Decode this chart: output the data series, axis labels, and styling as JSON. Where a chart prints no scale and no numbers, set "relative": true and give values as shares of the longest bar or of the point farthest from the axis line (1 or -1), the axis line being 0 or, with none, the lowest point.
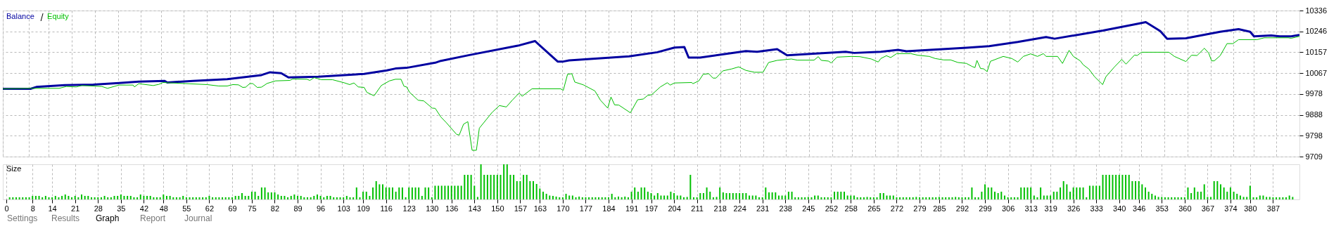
{
  "chart_data": [
    {
      "type": "line",
      "legend": "top left",
      "grid": true,
      "tick_labels": "y",
      "line_style": "solid",
      "xlim": [
        0,
        394
      ],
      "xticks": [
        0,
        8,
        14,
        21,
        28,
        35,
        42,
        48,
        55,
        62,
        69,
        75,
        82,
        89,
        96,
        103,
        109,
        116,
        123,
        130,
        136,
        143,
        150,
        157,
        163,
        170,
        177,
        184,
        191,
        197,
        204,
        211,
        218,
        224,
        231,
        238,
        245,
        252,
        258,
        265,
        272,
        279,
        285,
        292,
        299,
        306,
        313,
        319,
        326,
        333,
        340,
        346,
        353,
        360,
        367,
        374,
        380,
        387
      ],
      "ylim": [
        9709,
        10336
      ],
      "yticks": [
        9709,
        9798,
        9888,
        9978,
        10067,
        10157,
        10246,
        10336
      ],
      "series": [
        {
          "name": "Balance",
          "color": "#0000a0",
          "x": [
            0,
            8.4,
            10.2,
            18.8,
            27.5,
            35.3,
            41.3,
            49.1,
            50,
            57.8,
            68.2,
            78.6,
            81.2,
            84.6,
            86.8,
            95.9,
            109.8,
            116.7,
            119.3,
            122.7,
            131.4,
            133.1,
            141.8,
            156.5,
            161.7,
            168.6,
            170.3,
            172.1,
            190.3,
            198.9,
            204.1,
            207.1,
            208.4,
            211.9,
            225.8,
            229.2,
            235.3,
            238.3,
            256.1,
            258.7,
            266.8,
            272,
            274.6,
            292.8,
            299.7,
            308.4,
            317,
            319.6,
            334.3,
            344.7,
            347.3,
            351.7,
            353.8,
            359.5,
            369.9,
            375.5,
            379,
            380.2,
            385.4,
            388,
            391.5,
            394
          ],
          "values": [
            10000,
            10000,
            10008,
            10016,
            10018,
            10025,
            10031,
            10034,
            10027,
            10034,
            10041,
            10059,
            10071,
            10067,
            10049,
            10052,
            10064,
            10079,
            10087,
            10090,
            10112,
            10120,
            10145,
            10185,
            10205,
            10117,
            10117,
            10122,
            10139,
            10157,
            10177,
            10179,
            10134,
            10134,
            10162,
            10159,
            10170,
            10144,
            10159,
            10154,
            10159,
            10167,
            10161,
            10176,
            10183,
            10201,
            10222,
            10215,
            10250,
            10279,
            10286,
            10248,
            10215,
            10217,
            10245,
            10256,
            10245,
            10225,
            10229,
            10225,
            10225,
            10231
          ]
        },
        {
          "name": "Equity",
          "color": "#00c000",
          "x": [
            0,
            8.4,
            17.1,
            19.3,
            22.3,
            24,
            30.1,
            31.8,
            35.3,
            39.6,
            40,
            41.3,
            45.7,
            47.4,
            48.7,
            62.1,
            65.6,
            68.2,
            69.9,
            71.6,
            72.9,
            73.8,
            75.1,
            76,
            77.3,
            78.6,
            80.3,
            82.9,
            87.2,
            88.1,
            92.4,
            93.3,
            94.6,
            96.8,
            100.2,
            103.7,
            105.4,
            106.7,
            108,
            109.8,
            110.6,
            112.8,
            115,
            117.5,
            119.3,
            121,
            121.9,
            122.7,
            123.6,
            126.2,
            127.9,
            130.5,
            131.4,
            133.1,
            134.8,
            137.9,
            138.7,
            140,
            141.3,
            142.6,
            143.9,
            144.8,
            148.7,
            150.9,
            153,
            154.8,
            156.9,
            157.8,
            160.8,
            169.5,
            170.3,
            171.6,
            172.9,
            173.8,
            176.4,
            179.9,
            181.6,
            183.8,
            184.8,
            185.9,
            187.2,
            190.7,
            192.9,
            194.6,
            195.9,
            197.2,
            199.8,
            201.9,
            202.8,
            204.1,
            209.3,
            209.7,
            211.5,
            212.8,
            214.5,
            215.8,
            216.7,
            218.8,
            221.4,
            223.6,
            225.8,
            228.4,
            231,
            232.7,
            235.3,
            239.6,
            241.4,
            246.5,
            247.8,
            248.7,
            250.9,
            251.7,
            253.5,
            257.8,
            260.4,
            263.9,
            266,
            266.8,
            268.5,
            269.8,
            271.6,
            275.9,
            278.1,
            281.5,
            283.3,
            285.9,
            288,
            290.2,
            292.8,
            294.5,
            295.4,
            296,
            297.1,
            298,
            299.1,
            300.1,
            304,
            306.6,
            308.4,
            310.1,
            312.3,
            314.4,
            316.2,
            317,
            320.5,
            322,
            324,
            325.3,
            327.4,
            328.3,
            330,
            331.8,
            334.2,
            335.2,
            337.8,
            340,
            341.3,
            343.9,
            344.7,
            346,
            354.3,
            356,
            359.5,
            361.2,
            362.9,
            365.1,
            366.4,
            367.3,
            368.1,
            369.9,
            372,
            373.8,
            375.5,
            381.1,
            383.3,
            390.6,
            391.5,
            394
          ],
          "values": [
            10000,
            10002,
            10002,
            10010,
            10008,
            10014,
            10010,
            10002,
            10016,
            10016,
            10008,
            10022,
            10014,
            10019,
            10027,
            10018,
            10012,
            10012,
            10018,
            10017,
            10006,
            10007,
            10023,
            10022,
            10006,
            10007,
            10023,
            10034,
            10036,
            10042,
            10041,
            10036,
            10048,
            10039,
            10039,
            10026,
            10018,
            10025,
            10008,
            10006,
            9985,
            9970,
            10014,
            10034,
            10041,
            10041,
            10011,
            10008,
            9985,
            9951,
            9948,
            9917,
            9916,
            9879,
            9854,
            9804,
            9802,
            9848,
            9859,
            9736,
            9736,
            9831,
            9899,
            9928,
            9922,
            9951,
            9982,
            9968,
            10000,
            10000,
            9993,
            10062,
            10065,
            10029,
            10017,
            9991,
            9951,
            9917,
            9965,
            9931,
            9930,
            9897,
            9953,
            9956,
            9971,
            9975,
            10008,
            10026,
            10016,
            10025,
            10027,
            10022,
            10034,
            10062,
            10065,
            10046,
            10046,
            10077,
            10085,
            10094,
            10079,
            10071,
            10071,
            10113,
            10122,
            10128,
            10123,
            10123,
            10138,
            10122,
            10119,
            10111,
            10136,
            10139,
            10138,
            10128,
            10115,
            10130,
            10142,
            10134,
            10151,
            10151,
            10144,
            10139,
            10130,
            10124,
            10124,
            10113,
            10109,
            10096,
            10091,
            10122,
            10087,
            10086,
            10074,
            10118,
            10139,
            10130,
            10115,
            10139,
            10150,
            10139,
            10151,
            10139,
            10139,
            10109,
            10165,
            10139,
            10120,
            10103,
            10085,
            10051,
            10018,
            10052,
            10094,
            10126,
            10106,
            10145,
            10143,
            10157,
            10157,
            10139,
            10117,
            10144,
            10143,
            10174,
            10154,
            10120,
            10120,
            10142,
            10194,
            10194,
            10211,
            10211,
            10219,
            10219,
            10217,
            10225
          ]
        }
      ]
    },
    {
      "type": "bar",
      "relative": true,
      "title": "Size",
      "grid": "x",
      "tick_labels": "x",
      "xlim": [
        0,
        394
      ],
      "xticks": [
        0,
        8,
        14,
        21,
        28,
        35,
        42,
        48,
        55,
        62,
        69,
        75,
        82,
        89,
        96,
        103,
        109,
        116,
        123,
        130,
        136,
        143,
        150,
        157,
        163,
        170,
        177,
        184,
        191,
        197,
        204,
        211,
        218,
        224,
        231,
        238,
        245,
        252,
        258,
        265,
        272,
        279,
        285,
        292,
        299,
        306,
        313,
        319,
        326,
        333,
        340,
        346,
        353,
        360,
        367,
        374,
        380,
        387
      ],
      "annotations": [
        "Settings",
        "Results",
        "Graph",
        "Report",
        "Journal"
      ],
      "series": [
        {
          "color": "#00c000",
          "x": [
            1,
            2,
            3,
            4,
            5,
            6,
            7,
            8,
            9,
            10,
            11,
            12,
            13,
            14,
            15,
            16,
            17,
            18,
            19,
            20,
            21,
            22,
            23,
            24,
            25,
            26,
            27,
            28,
            29,
            30,
            31,
            32,
            33,
            34,
            35,
            36,
            37,
            38,
            39,
            40,
            41,
            42,
            43,
            44,
            45,
            46,
            47,
            48,
            49,
            50,
            51,
            52,
            53,
            54,
            55,
            56,
            57,
            58,
            59,
            60,
            61,
            62,
            63,
            64,
            65,
            66,
            67,
            68,
            69,
            70,
            71,
            72,
            73,
            74,
            75,
            76,
            77,
            78,
            79,
            80,
            81,
            82,
            83,
            84,
            85,
            86,
            87,
            88,
            89,
            90,
            91,
            92,
            93,
            94,
            95,
            96,
            97,
            98,
            99,
            100,
            101,
            102,
            103,
            104,
            105,
            106,
            107,
            108,
            109,
            110,
            111,
            112,
            113,
            114,
            115,
            116,
            117,
            118,
            119,
            120,
            121,
            122,
            123,
            124,
            125,
            126,
            127,
            128,
            129,
            130,
            131,
            132,
            133,
            134,
            135,
            136,
            137,
            138,
            139,
            140,
            141,
            142,
            143,
            144,
            145,
            146,
            147,
            148,
            149,
            150,
            151,
            152,
            153,
            154,
            155,
            156,
            157,
            158,
            159,
            160,
            161,
            162,
            163,
            164,
            165,
            166,
            167,
            168,
            169,
            170,
            171,
            172,
            173,
            174,
            175,
            176,
            177,
            178,
            179,
            180,
            181,
            182,
            183,
            184,
            185,
            186,
            187,
            188,
            189,
            190,
            191,
            192,
            193,
            194,
            195,
            196,
            197,
            198,
            199,
            200,
            201,
            202,
            203,
            204,
            205,
            206,
            207,
            208,
            209,
            210,
            211,
            212,
            213,
            214,
            215,
            216,
            217,
            218,
            219,
            220,
            221,
            222,
            223,
            224,
            225,
            226,
            227,
            228,
            229,
            230,
            231,
            232,
            233,
            234,
            235,
            236,
            237,
            238,
            239,
            240,
            241,
            242,
            243,
            244,
            245,
            246,
            247,
            248,
            249,
            250,
            251,
            252,
            253,
            254,
            255,
            256,
            257,
            258,
            259,
            260,
            261,
            262,
            263,
            264,
            265,
            266,
            267,
            268,
            269,
            270,
            271,
            272,
            273,
            274,
            275,
            276,
            277,
            278,
            279,
            280,
            281,
            282,
            283,
            284,
            285,
            286,
            287,
            288,
            289,
            290,
            291,
            292,
            293,
            294,
            295,
            296,
            297,
            298,
            299,
            300,
            301,
            302,
            303,
            304,
            305,
            306,
            307,
            308,
            309,
            310,
            311,
            312,
            313,
            314,
            315,
            316,
            317,
            318,
            319,
            320,
            321,
            322,
            323,
            324,
            325,
            326,
            327,
            328,
            329,
            330,
            331,
            332,
            333,
            334,
            335,
            336,
            337,
            338,
            339,
            340,
            341,
            342,
            343,
            344,
            345,
            346,
            347,
            348,
            349,
            350,
            351,
            352,
            353,
            354,
            355,
            356,
            357,
            358,
            359,
            360,
            361,
            362,
            363,
            364,
            365,
            366,
            367,
            368,
            369,
            370,
            371,
            372,
            373,
            374,
            375,
            376,
            377,
            378,
            379,
            380,
            381,
            382,
            383,
            384,
            385,
            386,
            387,
            388,
            389,
            390,
            391,
            392,
            393
          ],
          "values": [
            0.06,
            0.06,
            0.06,
            0.06,
            0.06,
            0.06,
            0.06,
            0.1,
            0.1,
            0.1,
            0.06,
            0.1,
            0.06,
            0.06,
            0.1,
            0.06,
            0.1,
            0.14,
            0.1,
            0.06,
            0.1,
            0.06,
            0.14,
            0.1,
            0.1,
            0.06,
            0.06,
            0.06,
            0.06,
            0.1,
            0.06,
            0.06,
            0.1,
            0.1,
            0.14,
            0.1,
            0.1,
            0.1,
            0.06,
            0.06,
            0.14,
            0.1,
            0.1,
            0.1,
            0.06,
            0.06,
            0.06,
            0.14,
            0.1,
            0.1,
            0.06,
            0.06,
            0.06,
            0.1,
            0.06,
            0.06,
            0.06,
            0.06,
            0.06,
            0.06,
            0.06,
            0.1,
            0.06,
            0.06,
            0.06,
            0.06,
            0.06,
            0.06,
            0.06,
            0.1,
            0.1,
            0.18,
            0.1,
            0.1,
            0.22,
            0.22,
            0.1,
            0.34,
            0.34,
            0.2,
            0.2,
            0.2,
            0.14,
            0.1,
            0.1,
            0.06,
            0.1,
            0.14,
            0.1,
            0.1,
            0.06,
            0.06,
            0.06,
            0.1,
            0.14,
            0.1,
            0.06,
            0.1,
            0.1,
            0.06,
            0.06,
            0.06,
            0.06,
            0.1,
            0.06,
            0.06,
            0.34,
            0.06,
            0.22,
            0.22,
            0.1,
            0.34,
            0.52,
            0.43,
            0.43,
            0.34,
            0.34,
            0.34,
            0.22,
            0.34,
            0.34,
            0.06,
            0.34,
            0.34,
            0.34,
            0.34,
            0.1,
            0.34,
            0.34,
            0.06,
            0.39,
            0.39,
            0.39,
            0.39,
            0.39,
            0.39,
            0.39,
            0.39,
            0.39,
            0.7,
            0.7,
            0.7,
            0.39,
            0.07,
            1,
            0.7,
            0.7,
            0.7,
            0.7,
            0.7,
            0.7,
            1,
            1,
            0.7,
            0.7,
            0.52,
            0.52,
            0.7,
            0.7,
            0.52,
            0.52,
            0.44,
            0.31,
            0.22,
            0.16,
            0.11,
            0.1,
            0.08,
            0.06,
            0.06,
            0.16,
            0.11,
            0.11,
            0.06,
            0.08,
            0.06,
            0.06,
            0.06,
            0.06,
            0.06,
            0.06,
            0.06,
            0.06,
            0.06,
            0.16,
            0.06,
            0.08,
            0.06,
            0.08,
            0.06,
            0.22,
            0.34,
            0.22,
            0.34,
            0.34,
            0.22,
            0.18,
            0.11,
            0.18,
            0.11,
            0.11,
            0.11,
            0.22,
            0.18,
            0.11,
            0.11,
            0.06,
            0.07,
            0.7,
            0.06,
            0.06,
            0.18,
            0.18,
            0.34,
            0.22,
            0.06,
            0.07,
            0.34,
            0.2,
            0.18,
            0.18,
            0.18,
            0.18,
            0.18,
            0.18,
            0.18,
            0.11,
            0.11,
            0.11,
            0.06,
            0.06,
            0.34,
            0.2,
            0.2,
            0.2,
            0.11,
            0.11,
            0.11,
            0.22,
            0.22,
            0.06,
            0.06,
            0.06,
            0.06,
            0.07,
            0.06,
            0.11,
            0.11,
            0.06,
            0.06,
            0.06,
            0.06,
            0.22,
            0.22,
            0.22,
            0.22,
            0.11,
            0.11,
            0.11,
            0.06,
            0.06,
            0.06,
            0.07,
            0.06,
            0.06,
            0.06,
            0.18,
            0.18,
            0.11,
            0.11,
            0.11,
            0.06,
            0.06,
            0.06,
            0.06,
            0.06,
            0.06,
            0.07,
            0.06,
            0.06,
            0.06,
            0.06,
            0.06,
            0.06,
            0.07,
            0.06,
            0.06,
            0.06,
            0.06,
            0.07,
            0.06,
            0.06,
            0.06,
            0.06,
            0.34,
            0.06,
            0.06,
            0.22,
            0.43,
            0.34,
            0.34,
            0.22,
            0.18,
            0.22,
            0.11,
            0.06,
            0.06,
            0.06,
            0.06,
            0.34,
            0.34,
            0.34,
            0.34,
            0.11,
            0.06,
            0.34,
            0.11,
            0.11,
            0.11,
            0.22,
            0.22,
            0.34,
            0.52,
            0.43,
            0.22,
            0.34,
            0.34,
            0.34,
            0.34,
            0.06,
            0.39,
            0.39,
            0.39,
            0.39,
            0.7,
            0.7,
            0.7,
            0.7,
            0.7,
            0.7,
            0.7,
            0.7,
            0.7,
            0.52,
            0.52,
            0.52,
            0.43,
            0.34,
            0.22,
            0.16,
            0.11,
            0.07,
            0.07,
            0.06,
            0.06,
            0.06,
            0.06,
            0.06,
            0.06,
            0.06,
            0.34,
            0.18,
            0.34,
            0.22,
            0.22,
            0.43,
            0.07,
            0.07,
            0.52,
            0.52,
            0.43,
            0.34,
            0.22,
            0.34,
            0.22,
            0.16,
            0.11,
            0.07,
            0.07,
            0.39,
            0.06,
            0.06,
            0.11,
            0.11,
            0.07,
            0.07,
            0.06,
            0.06,
            0.06,
            0.06,
            0.06,
            0.11,
            0.07
          ]
        }
      ]
    }
  ]
}
